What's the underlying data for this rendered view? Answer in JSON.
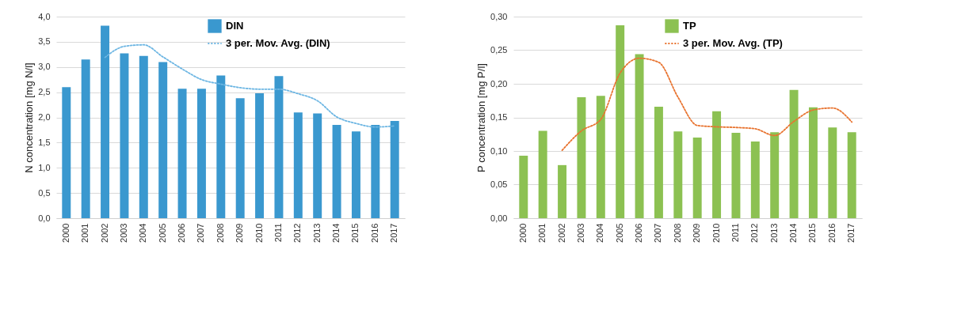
{
  "chart_data": [
    {
      "type": "bar",
      "categories": [
        "2000",
        "2001",
        "2002",
        "2003",
        "2004",
        "2005",
        "2006",
        "2007",
        "2008",
        "2009",
        "2010",
        "2011",
        "2012",
        "2013",
        "2014",
        "2015",
        "2016",
        "2017"
      ],
      "ylabel": "N concentration [mg N/l]",
      "ylim": [
        0,
        4
      ],
      "yticks": [
        {
          "value": 0,
          "label": "0,0"
        },
        {
          "value": 0.5,
          "label": "0,5"
        },
        {
          "value": 1,
          "label": "1,0"
        },
        {
          "value": 1.5,
          "label": "1,5"
        },
        {
          "value": 2,
          "label": "2,0"
        },
        {
          "value": 2.5,
          "label": "2,5"
        },
        {
          "value": 3,
          "label": "3,0"
        },
        {
          "value": 3.5,
          "label": "3,5"
        },
        {
          "value": 4,
          "label": "4,0"
        }
      ],
      "grid": "y",
      "legend": "top right",
      "series": [
        {
          "name": "DIN",
          "color": "#3a98cf",
          "values": [
            2.6,
            3.15,
            3.82,
            3.27,
            3.22,
            3.1,
            2.57,
            2.57,
            2.83,
            2.38,
            2.48,
            2.82,
            2.1,
            2.08,
            1.85,
            1.72,
            1.85,
            1.93
          ]
        },
        {
          "name": "3 per. Mov. Avg. (DIN)",
          "type": "line",
          "line_style": "dotted",
          "color": "#6db6e3",
          "values": [
            null,
            null,
            3.19,
            3.41,
            3.44,
            3.2,
            2.96,
            2.75,
            2.66,
            2.59,
            2.56,
            2.56,
            2.47,
            2.33,
            2.01,
            1.88,
            1.81,
            1.83
          ]
        }
      ]
    },
    {
      "type": "bar",
      "categories": [
        "2000",
        "2001",
        "2002",
        "2003",
        "2004",
        "2005",
        "2006",
        "2007",
        "2008",
        "2009",
        "2010",
        "2011",
        "2012",
        "2013",
        "2014",
        "2015",
        "2016",
        "2017"
      ],
      "ylabel": "P concentration [mg P/l]",
      "ylim": [
        0,
        0.3
      ],
      "yticks": [
        {
          "value": 0,
          "label": "0,00"
        },
        {
          "value": 0.05,
          "label": "0,05"
        },
        {
          "value": 0.1,
          "label": "0,10"
        },
        {
          "value": 0.15,
          "label": "0,15"
        },
        {
          "value": 0.2,
          "label": "0,20"
        },
        {
          "value": 0.25,
          "label": "0,25"
        },
        {
          "value": 0.3,
          "label": "0,30"
        }
      ],
      "grid": "y",
      "legend": "top right",
      "series": [
        {
          "name": "TP",
          "color": "#8cc152",
          "values": [
            0.093,
            0.13,
            0.079,
            0.18,
            0.182,
            0.287,
            0.244,
            0.166,
            0.129,
            0.12,
            0.159,
            0.127,
            0.114,
            0.128,
            0.191,
            0.165,
            0.135,
            0.128
          ]
        },
        {
          "name": "3 per. Mov. Avg. (TP)",
          "type": "line",
          "line_style": "dotted",
          "color": "#e8732f",
          "values": [
            null,
            null,
            0.101,
            0.13,
            0.147,
            0.216,
            0.238,
            0.232,
            0.18,
            0.138,
            0.136,
            0.135,
            0.133,
            0.123,
            0.144,
            0.161,
            0.164,
            0.143
          ]
        }
      ]
    }
  ]
}
